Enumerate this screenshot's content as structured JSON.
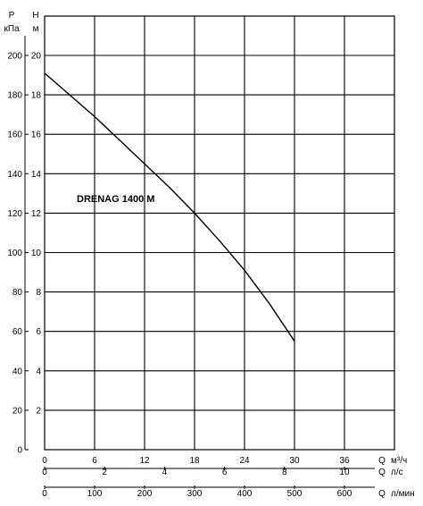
{
  "chart_data": {
    "type": "line",
    "title": "",
    "annotation": "DRENAG 1400 M",
    "left_axes": {
      "pressure": {
        "unit_top": "P",
        "unit_bottom": "кПа",
        "range": [
          0,
          200
        ],
        "ticks": [
          0,
          20,
          40,
          60,
          80,
          100,
          120,
          140,
          160,
          180,
          200
        ]
      },
      "head": {
        "unit_top": "H",
        "unit_bottom": "м",
        "range": [
          0,
          20
        ],
        "ticks": [
          2,
          4,
          6,
          8,
          10,
          12,
          14,
          16,
          18,
          20
        ]
      }
    },
    "bottom_axes": [
      {
        "label_q": "Q",
        "label_unit": "м³/ч",
        "range": [
          0,
          42
        ],
        "ticks": [
          0,
          6,
          12,
          18,
          24,
          30,
          36
        ]
      },
      {
        "label_q": "Q",
        "label_unit": "л/с",
        "range": [
          0,
          11.6667
        ],
        "ticks": [
          0,
          2,
          4,
          6,
          8,
          10
        ]
      },
      {
        "label_q": "Q",
        "label_unit": "л/мин",
        "range": [
          0,
          700
        ],
        "ticks": [
          0,
          100,
          200,
          300,
          400,
          500,
          600
        ]
      }
    ],
    "grid": true,
    "series": [
      {
        "x": [
          0,
          3,
          6,
          9,
          12,
          15,
          18,
          21,
          24,
          27,
          30
        ],
        "y": [
          19.1,
          18.0,
          16.9,
          15.7,
          14.5,
          13.3,
          12.0,
          10.6,
          9.1,
          7.4,
          5.5
        ]
      }
    ]
  }
}
